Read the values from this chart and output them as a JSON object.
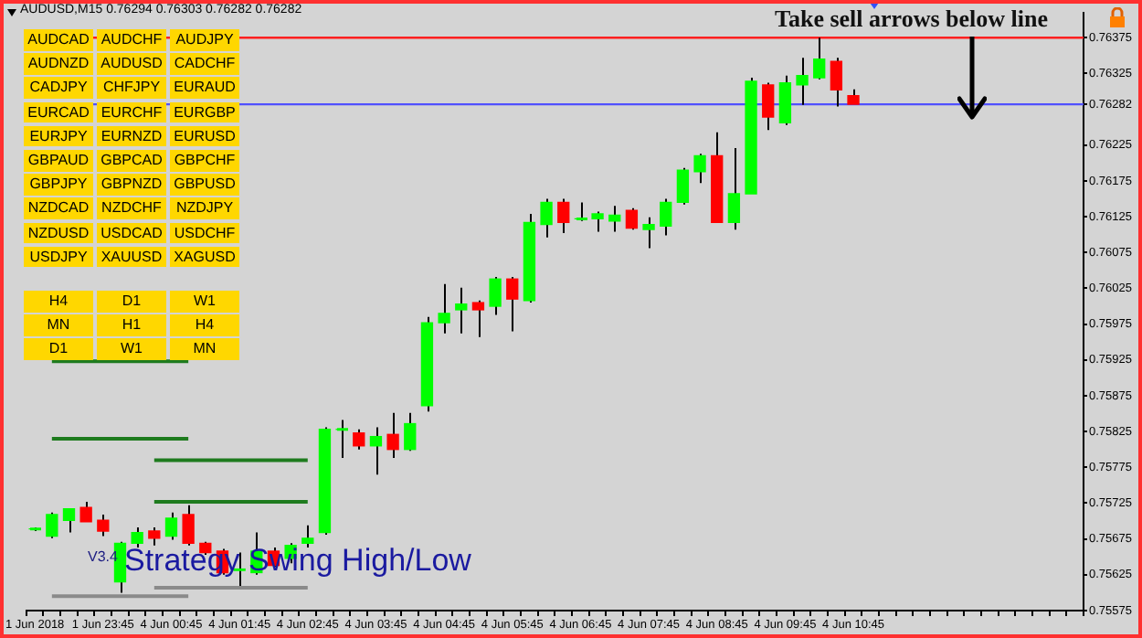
{
  "chart_data": {
    "type": "candlestick",
    "title": "AUDUSD,M15 0.76294 0.76303 0.76282 0.76282",
    "categories": [
      "1 Jun 2018",
      null,
      null,
      null,
      "1 Jun 23:45",
      null,
      null,
      null,
      "4 Jun 00:45",
      null,
      null,
      null,
      "4 Jun 01:45",
      null,
      null,
      null,
      "4 Jun 02:45",
      null,
      null,
      null,
      "4 Jun 03:45",
      null,
      null,
      null,
      "4 Jun 04:45",
      null,
      null,
      null,
      "4 Jun 05:45",
      null,
      null,
      null,
      "4 Jun 06:45",
      null,
      null,
      null,
      "4 Jun 07:45",
      null,
      null,
      null,
      "4 Jun 08:45",
      null,
      null,
      null,
      "4 Jun 09:45",
      null,
      null,
      null,
      "4 Jun 10:45",
      null,
      null,
      null,
      null,
      null,
      null,
      null,
      null,
      null,
      null,
      null,
      null,
      null
    ],
    "ohlc": [
      [
        0.75689,
        0.75691,
        0.75686,
        0.75689
      ],
      [
        0.75679,
        0.75712,
        0.75676,
        0.75709
      ],
      [
        0.75701,
        0.75717,
        0.75684,
        0.75717
      ],
      [
        0.75719,
        0.75727,
        0.75699,
        0.75699
      ],
      [
        0.75701,
        0.75709,
        0.75679,
        0.75686
      ],
      [
        0.75615,
        0.75671,
        0.756,
        0.75669
      ],
      [
        0.75669,
        0.75691,
        0.75663,
        0.75684
      ],
      [
        0.75686,
        0.75691,
        0.75666,
        0.75676
      ],
      [
        0.75679,
        0.75712,
        0.75674,
        0.75704
      ],
      [
        0.75709,
        0.75722,
        0.75666,
        0.75669
      ],
      [
        0.75669,
        0.75671,
        0.75653,
        0.75656
      ],
      [
        0.75658,
        0.75661,
        0.75625,
        0.75628
      ],
      [
        0.75631,
        0.75656,
        0.75608,
        0.75633
      ],
      [
        0.75628,
        0.75684,
        0.75625,
        0.75658
      ],
      [
        0.75658,
        0.75663,
        0.75636,
        0.75638
      ],
      [
        0.75648,
        0.75669,
        0.75641,
        0.75666
      ],
      [
        0.75669,
        0.75694,
        0.75663,
        0.75676
      ],
      [
        0.75684,
        0.75831,
        0.75681,
        0.75828
      ],
      [
        0.75828,
        0.75841,
        0.75788,
        0.75828
      ],
      [
        0.75823,
        0.75828,
        0.758,
        0.75805
      ],
      [
        0.75805,
        0.75831,
        0.75765,
        0.75818
      ],
      [
        0.75821,
        0.75851,
        0.75788,
        0.758
      ],
      [
        0.758,
        0.75851,
        0.75798,
        0.75836
      ],
      [
        0.75861,
        0.75985,
        0.75853,
        0.75977
      ],
      [
        0.75977,
        0.76031,
        0.75962,
        0.7599
      ],
      [
        0.75995,
        0.76026,
        0.75962,
        0.76003
      ],
      [
        0.76005,
        0.76008,
        0.75957,
        0.75995
      ],
      [
        0.76,
        0.76041,
        0.75988,
        0.76038
      ],
      [
        0.76038,
        0.76041,
        0.75965,
        0.7601
      ],
      [
        0.76008,
        0.76129,
        0.76005,
        0.76117
      ],
      [
        0.76114,
        0.7615,
        0.76096,
        0.76145
      ],
      [
        0.76145,
        0.7615,
        0.76102,
        0.76117
      ],
      [
        0.76122,
        0.76145,
        0.76119,
        0.76122
      ],
      [
        0.76122,
        0.76132,
        0.76104,
        0.76129
      ],
      [
        0.76119,
        0.7614,
        0.76104,
        0.76127
      ],
      [
        0.76134,
        0.76137,
        0.76107,
        0.76109
      ],
      [
        0.76107,
        0.76124,
        0.76081,
        0.76114
      ],
      [
        0.76112,
        0.7615,
        0.76099,
        0.76145
      ],
      [
        0.76145,
        0.76193,
        0.76142,
        0.7619
      ],
      [
        0.76188,
        0.76213,
        0.76172,
        0.7621
      ],
      [
        0.7621,
        0.76243,
        0.76117,
        0.76117
      ],
      [
        0.76117,
        0.76221,
        0.76107,
        0.76157
      ],
      [
        0.76157,
        0.76319,
        0.76157,
        0.76314
      ],
      [
        0.76309,
        0.76312,
        0.76246,
        0.76264
      ],
      [
        0.76256,
        0.76322,
        0.76253,
        0.76312
      ],
      [
        0.76309,
        0.76347,
        0.76281,
        0.76322
      ],
      [
        0.76319,
        0.76375,
        0.76317,
        0.76345
      ],
      [
        0.76342,
        0.76347,
        0.76279,
        0.76302
      ],
      [
        0.76294,
        0.76303,
        0.76282,
        0.76282
      ],
      null,
      null,
      null,
      null,
      null,
      null,
      null,
      null,
      null,
      null,
      null,
      null,
      null
    ],
    "colors": [
      "#00ff00",
      "#00ff00",
      "#00ff00",
      "#ff0000",
      "#ff0000",
      "#00ff00",
      "#00ff00",
      "#ff0000",
      "#00ff00",
      "#ff0000",
      "#ff0000",
      "#ff0000",
      "#00ff00",
      "#00ff00",
      "#ff0000",
      "#00ff00",
      "#00ff00",
      "#00ff00",
      "#00ff00",
      "#ff0000",
      "#00ff00",
      "#ff0000",
      "#00ff00",
      "#00ff00",
      "#00ff00",
      "#00ff00",
      "#ff0000",
      "#00ff00",
      "#ff0000",
      "#00ff00",
      "#00ff00",
      "#ff0000",
      "#00ff00",
      "#00ff00",
      "#00ff00",
      "#ff0000",
      "#00ff00",
      "#00ff00",
      "#00ff00",
      "#00ff00",
      "#ff0000",
      "#00ff00",
      "#00ff00",
      "#ff0000",
      "#00ff00",
      "#00ff00",
      "#00ff00",
      "#ff0000",
      "#ff0000",
      null,
      null,
      null,
      null,
      null,
      null,
      null,
      null,
      null,
      null,
      null,
      null,
      null
    ],
    "series": [
      {
        "type": "line",
        "color": "#1e7b1e",
        "values": [
          null,
          0.75923,
          0.75923,
          0.75923,
          0.75923,
          0.75923,
          0.75923,
          0.75923,
          0.75923,
          0.75923,
          null,
          null,
          null,
          null,
          null,
          null,
          null,
          null,
          null,
          null,
          null,
          null,
          null,
          null,
          null,
          null,
          null,
          null,
          null,
          null,
          null,
          null,
          null,
          null,
          null,
          null,
          null,
          null,
          null,
          null,
          null,
          null,
          null,
          null,
          null,
          null,
          null,
          null,
          null,
          null,
          null,
          null,
          null,
          null,
          null,
          null,
          null,
          null,
          null,
          null,
          null,
          null
        ]
      },
      {
        "type": "line",
        "color": "#1e7b1e",
        "values": [
          null,
          0.75815,
          0.75815,
          0.75815,
          0.75815,
          0.75815,
          0.75815,
          0.75815,
          0.75815,
          0.75815,
          null,
          null,
          null,
          null,
          null,
          null,
          null,
          null,
          null,
          null,
          null,
          null,
          null,
          null,
          null,
          null,
          null,
          null,
          null,
          null,
          null,
          null,
          null,
          null,
          null,
          null,
          null,
          null,
          null,
          null,
          null,
          null,
          null,
          null,
          null,
          null,
          null,
          null,
          null,
          null,
          null,
          null,
          null,
          null,
          null,
          null,
          null,
          null,
          null,
          null,
          null,
          null
        ]
      },
      {
        "type": "line",
        "color": "#1e7b1e",
        "values": [
          null,
          null,
          null,
          null,
          null,
          null,
          null,
          0.75785,
          0.75785,
          0.75785,
          0.75785,
          0.75785,
          0.75785,
          0.75785,
          0.75785,
          0.75785,
          0.75785,
          null,
          null,
          null,
          null,
          null,
          null,
          null,
          null,
          null,
          null,
          null,
          null,
          null,
          null,
          null,
          null,
          null,
          null,
          null,
          null,
          null,
          null,
          null,
          null,
          null,
          null,
          null,
          null,
          null,
          null,
          null,
          null,
          null,
          null,
          null,
          null,
          null,
          null,
          null,
          null,
          null,
          null,
          null,
          null,
          null
        ]
      },
      {
        "type": "line",
        "color": "#1e7b1e",
        "values": [
          null,
          null,
          null,
          null,
          null,
          null,
          null,
          0.75727,
          0.75727,
          0.75727,
          0.75727,
          0.75727,
          0.75727,
          0.75727,
          0.75727,
          0.75727,
          0.75727,
          null,
          null,
          null,
          null,
          null,
          null,
          null,
          null,
          null,
          null,
          null,
          null,
          null,
          null,
          null,
          null,
          null,
          null,
          null,
          null,
          null,
          null,
          null,
          null,
          null,
          null,
          null,
          null,
          null,
          null,
          null,
          null,
          null,
          null,
          null,
          null,
          null,
          null,
          null,
          null,
          null,
          null,
          null,
          null,
          null
        ]
      },
      {
        "type": "line",
        "color": "#8a8a8a",
        "values": [
          null,
          0.75595,
          0.75595,
          0.75595,
          0.75595,
          0.75595,
          0.75595,
          0.75595,
          0.75595,
          0.75595,
          null,
          null,
          null,
          null,
          null,
          null,
          null,
          null,
          null,
          null,
          null,
          null,
          null,
          null,
          null,
          null,
          null,
          null,
          null,
          null,
          null,
          null,
          null,
          null,
          null,
          null,
          null,
          null,
          null,
          null,
          null,
          null,
          null,
          null,
          null,
          null,
          null,
          null,
          null,
          null,
          null,
          null,
          null,
          null,
          null,
          null,
          null,
          null,
          null,
          null,
          null,
          null
        ]
      },
      {
        "type": "line",
        "color": "#8a8a8a",
        "values": [
          null,
          null,
          null,
          null,
          null,
          null,
          null,
          0.75607,
          0.75607,
          0.75607,
          0.75607,
          0.75607,
          0.75607,
          0.75607,
          0.75607,
          0.75607,
          0.75607,
          null,
          null,
          null,
          null,
          null,
          null,
          null,
          null,
          null,
          null,
          null,
          null,
          null,
          null,
          null,
          null,
          null,
          null,
          null,
          null,
          null,
          null,
          null,
          null,
          null,
          null,
          null,
          null,
          null,
          null,
          null,
          null,
          null,
          null,
          null,
          null,
          null,
          null,
          null,
          null,
          null,
          null,
          null,
          null,
          null
        ]
      }
    ],
    "ylim": [
      0.75575,
      0.7641
    ],
    "yticks": [
      0.75575,
      0.75625,
      0.75675,
      0.75725,
      0.75775,
      0.75825,
      0.75875,
      0.75925,
      0.75975,
      0.76025,
      0.76075,
      0.76125,
      0.76175,
      0.76225,
      0.76282,
      0.76325,
      0.76375
    ],
    "ref_lines": [
      {
        "axis": "y",
        "value": 0.76375,
        "color": "#ff2020"
      },
      {
        "axis": "y",
        "value": 0.76282,
        "color": "#5050ff"
      }
    ],
    "annotations": [
      {
        "text": "Take sell arrows below line",
        "y": 0.76375
      },
      "Strategy Swing High/Low",
      "V3.4",
      "AUDCAD",
      "AUDCHF",
      "AUDJPY",
      "AUDNZD",
      "AUDUSD",
      "CADCHF",
      "CADJPY",
      "CHFJPY",
      "EURAUD",
      "EURCAD",
      "EURCHF",
      "EURGBP",
      "EURJPY",
      "EURNZD",
      "EURUSD",
      "GBPAUD",
      "GBPCAD",
      "GBPCHF",
      "GBPJPY",
      "GBPNZD",
      "GBPUSD",
      "NZDCAD",
      "NZDCHF",
      "NZDJPY",
      "NZDUSD",
      "USDCAD",
      "USDCHF",
      "USDJPY",
      "XAUUSD",
      "XAGUSD",
      "H4",
      "D1",
      "W1",
      "MN",
      "H1",
      "H4",
      "D1",
      "W1",
      "MN"
    ]
  }
}
